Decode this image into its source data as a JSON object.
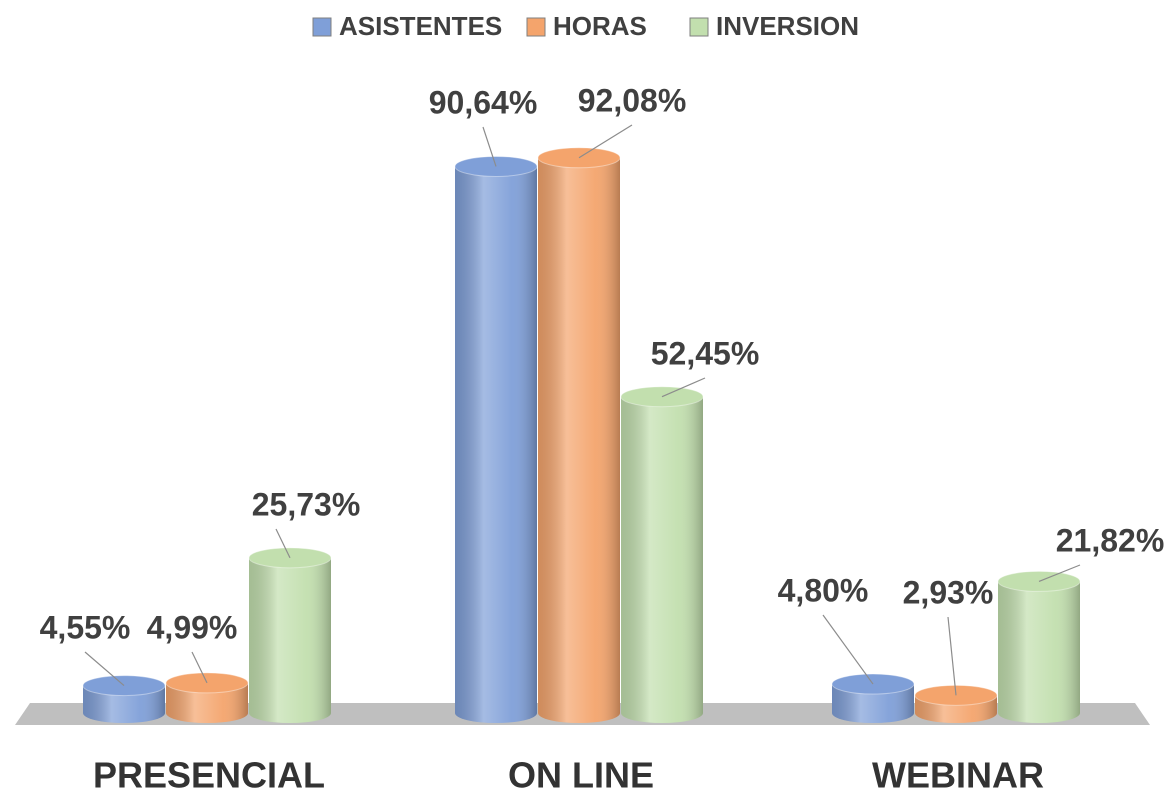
{
  "chart_data": {
    "type": "bar3d",
    "categories": [
      "PRESENCIAL",
      "ON LINE",
      "WEBINAR"
    ],
    "series": [
      {
        "name": "ASISTENTES",
        "color": "#7f9fd8",
        "values": [
          4.55,
          90.64,
          4.8
        ],
        "value_labels": [
          "4,55%",
          "90,64%",
          "4,80%"
        ]
      },
      {
        "name": "HORAS",
        "color": "#f4a46c",
        "values": [
          4.99,
          92.08,
          2.93
        ],
        "value_labels": [
          "4,99%",
          "92,08%",
          "2,93%"
        ]
      },
      {
        "name": "INVERSION",
        "color": "#c2dfae",
        "values": [
          25.73,
          52.45,
          21.82
        ],
        "value_labels": [
          "25,73%",
          "52,45%",
          "21,82%"
        ]
      }
    ]
  }
}
